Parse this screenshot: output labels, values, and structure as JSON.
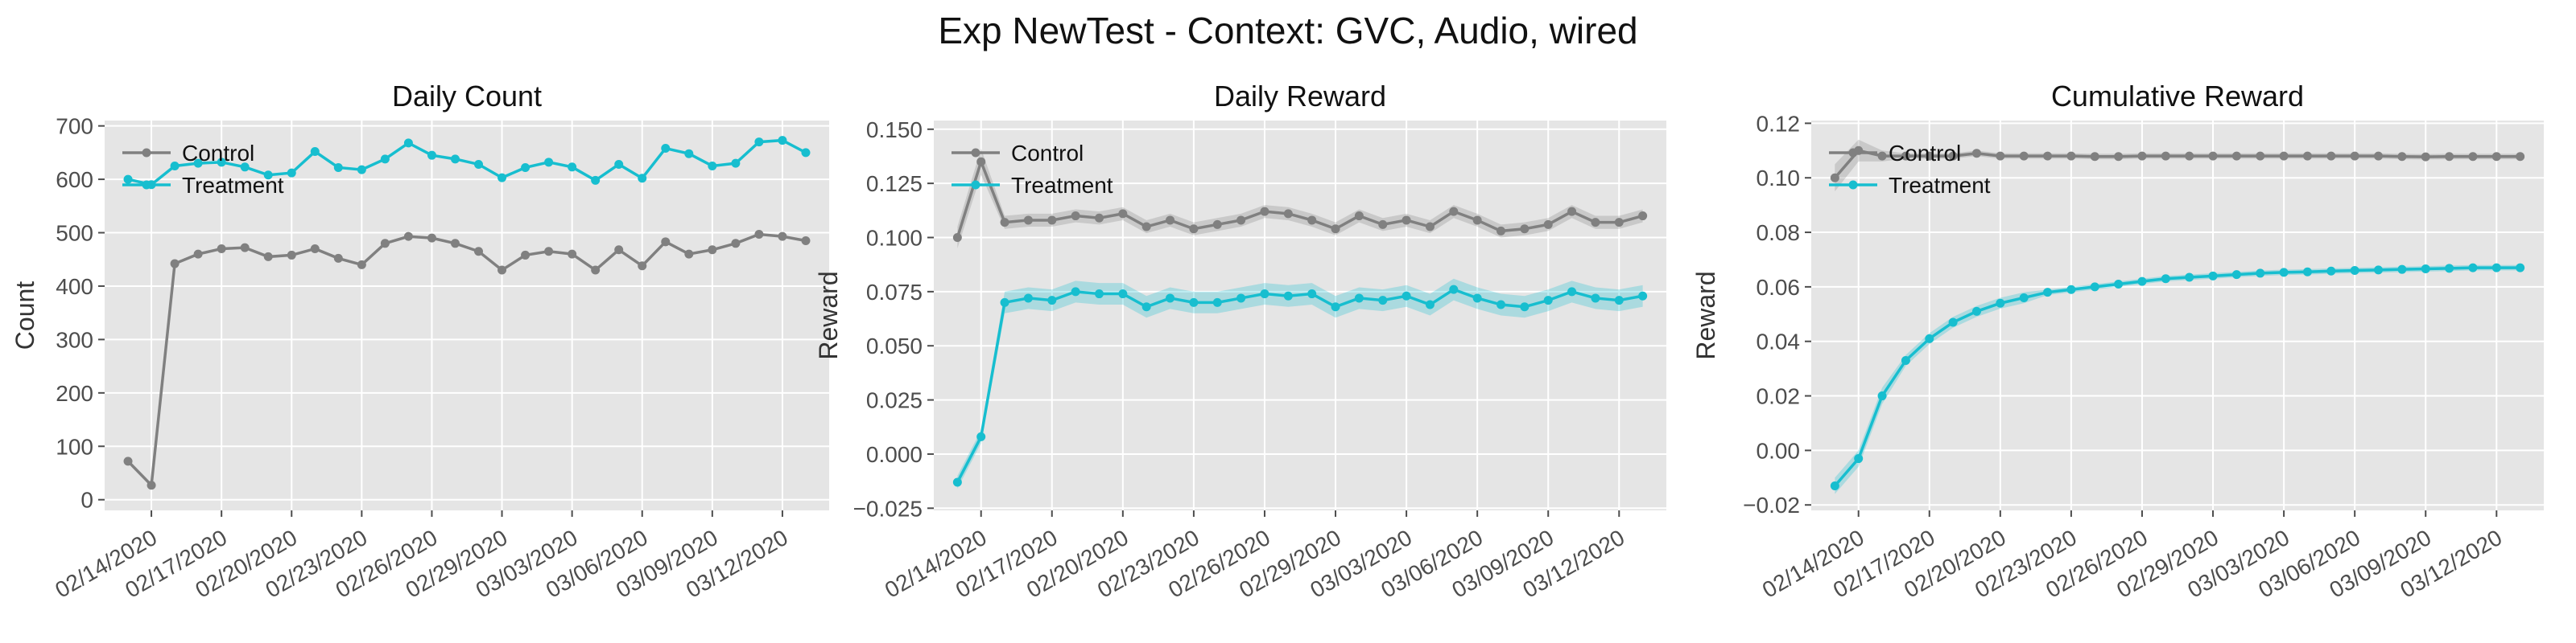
{
  "figure": {
    "title": "Exp NewTest - Context: GVC, Audio, wired"
  },
  "colors": {
    "panel_bg": "#E5E5E5",
    "grid": "#FFFFFF",
    "control": "#808080",
    "treatment": "#17BECF"
  },
  "chart_data": [
    {
      "type": "line",
      "title": "Daily Count",
      "xlabel": "",
      "ylabel": "Count",
      "x_tick_labels": [
        "02/14/2020",
        "02/17/2020",
        "02/20/2020",
        "02/23/2020",
        "02/26/2020",
        "02/29/2020",
        "03/03/2020",
        "03/06/2020",
        "03/09/2020",
        "03/12/2020"
      ],
      "x_tick_dates": [
        "2020-02-14",
        "2020-02-17",
        "2020-02-20",
        "2020-02-23",
        "2020-02-26",
        "2020-02-29",
        "2020-03-03",
        "2020-03-06",
        "2020-03-09",
        "2020-03-12"
      ],
      "x": [
        "2020-02-13",
        "2020-02-14",
        "2020-02-15",
        "2020-02-16",
        "2020-02-17",
        "2020-02-18",
        "2020-02-19",
        "2020-02-20",
        "2020-02-21",
        "2020-02-22",
        "2020-02-23",
        "2020-02-24",
        "2020-02-25",
        "2020-02-26",
        "2020-02-27",
        "2020-02-28",
        "2020-02-29",
        "2020-03-01",
        "2020-03-02",
        "2020-03-03",
        "2020-03-04",
        "2020-03-05",
        "2020-03-06",
        "2020-03-07",
        "2020-03-08",
        "2020-03-09",
        "2020-03-10",
        "2020-03-11",
        "2020-03-12",
        "2020-03-13"
      ],
      "xlim": [
        "2020-02-12",
        "2020-03-14"
      ],
      "ylim": [
        -20,
        710
      ],
      "y_ticks": [
        0,
        100,
        200,
        300,
        400,
        500,
        600,
        700
      ],
      "y_tick_labels": [
        "0",
        "100",
        "200",
        "300",
        "400",
        "500",
        "600",
        "700"
      ],
      "grid": true,
      "legend": {
        "position": "top-left",
        "entries": [
          "Control",
          "Treatment"
        ]
      },
      "series": [
        {
          "name": "Control",
          "values": [
            72,
            27,
            442,
            460,
            470,
            472,
            455,
            458,
            470,
            452,
            440,
            480,
            493,
            490,
            480,
            465,
            430,
            458,
            465,
            460,
            430,
            468,
            438,
            483,
            460,
            468,
            480,
            497,
            493,
            485
          ]
        },
        {
          "name": "Treatment",
          "values": [
            600,
            590,
            625,
            630,
            632,
            623,
            608,
            612,
            652,
            622,
            618,
            638,
            668,
            645,
            638,
            628,
            603,
            622,
            632,
            623,
            598,
            628,
            602,
            658,
            648,
            625,
            630,
            670,
            673,
            650
          ]
        }
      ]
    },
    {
      "type": "line",
      "title": "Daily Reward",
      "xlabel": "",
      "ylabel": "Reward",
      "x_tick_labels": [
        "02/14/2020",
        "02/17/2020",
        "02/20/2020",
        "02/23/2020",
        "02/26/2020",
        "02/29/2020",
        "03/03/2020",
        "03/06/2020",
        "03/09/2020",
        "03/12/2020"
      ],
      "x_tick_dates": [
        "2020-02-14",
        "2020-02-17",
        "2020-02-20",
        "2020-02-23",
        "2020-02-26",
        "2020-02-29",
        "2020-03-03",
        "2020-03-06",
        "2020-03-09",
        "2020-03-12"
      ],
      "x": [
        "2020-02-13",
        "2020-02-14",
        "2020-02-15",
        "2020-02-16",
        "2020-02-17",
        "2020-02-18",
        "2020-02-19",
        "2020-02-20",
        "2020-02-21",
        "2020-02-22",
        "2020-02-23",
        "2020-02-24",
        "2020-02-25",
        "2020-02-26",
        "2020-02-27",
        "2020-02-28",
        "2020-02-29",
        "2020-03-01",
        "2020-03-02",
        "2020-03-03",
        "2020-03-04",
        "2020-03-05",
        "2020-03-06",
        "2020-03-07",
        "2020-03-08",
        "2020-03-09",
        "2020-03-10",
        "2020-03-11",
        "2020-03-12",
        "2020-03-13"
      ],
      "xlim": [
        "2020-02-12",
        "2020-03-14"
      ],
      "ylim": [
        -0.026,
        0.154
      ],
      "y_ticks": [
        -0.025,
        0.0,
        0.025,
        0.05,
        0.075,
        0.1,
        0.125,
        0.15
      ],
      "y_tick_labels": [
        "−0.025",
        "0.000",
        "0.025",
        "0.050",
        "0.075",
        "0.100",
        "0.125",
        "0.150"
      ],
      "grid": true,
      "legend": {
        "position": "top-left",
        "entries": [
          "Control",
          "Treatment"
        ]
      },
      "series": [
        {
          "name": "Control",
          "values": [
            0.1,
            0.135,
            0.107,
            0.108,
            0.108,
            0.11,
            0.109,
            0.111,
            0.105,
            0.108,
            0.104,
            0.106,
            0.108,
            0.112,
            0.111,
            0.108,
            0.104,
            0.11,
            0.106,
            0.108,
            0.105,
            0.112,
            0.108,
            0.103,
            0.104,
            0.106,
            0.112,
            0.107,
            0.107,
            0.11
          ],
          "band": [
            0.005,
            0.006,
            0.003,
            0.003,
            0.003,
            0.003,
            0.003,
            0.003,
            0.003,
            0.003,
            0.003,
            0.003,
            0.003,
            0.003,
            0.003,
            0.003,
            0.003,
            0.003,
            0.003,
            0.003,
            0.003,
            0.003,
            0.003,
            0.003,
            0.003,
            0.003,
            0.003,
            0.003,
            0.003,
            0.003
          ]
        },
        {
          "name": "Treatment",
          "values": [
            -0.013,
            0.008,
            0.07,
            0.072,
            0.071,
            0.075,
            0.074,
            0.074,
            0.068,
            0.072,
            0.07,
            0.07,
            0.072,
            0.074,
            0.073,
            0.074,
            0.068,
            0.072,
            0.071,
            0.073,
            0.069,
            0.076,
            0.072,
            0.069,
            0.068,
            0.071,
            0.075,
            0.072,
            0.071,
            0.073
          ],
          "band": [
            0.003,
            0.003,
            0.005,
            0.005,
            0.005,
            0.005,
            0.005,
            0.005,
            0.005,
            0.005,
            0.005,
            0.005,
            0.005,
            0.005,
            0.005,
            0.005,
            0.005,
            0.005,
            0.005,
            0.005,
            0.005,
            0.005,
            0.005,
            0.005,
            0.005,
            0.005,
            0.005,
            0.005,
            0.005,
            0.005
          ]
        }
      ]
    },
    {
      "type": "line",
      "title": "Cumulative Reward",
      "xlabel": "",
      "ylabel": "Reward",
      "x_tick_labels": [
        "02/14/2020",
        "02/17/2020",
        "02/20/2020",
        "02/23/2020",
        "02/26/2020",
        "02/29/2020",
        "03/03/2020",
        "03/06/2020",
        "03/09/2020",
        "03/12/2020"
      ],
      "x_tick_dates": [
        "2020-02-14",
        "2020-02-17",
        "2020-02-20",
        "2020-02-23",
        "2020-02-26",
        "2020-02-29",
        "2020-03-03",
        "2020-03-06",
        "2020-03-09",
        "2020-03-12"
      ],
      "x": [
        "2020-02-13",
        "2020-02-14",
        "2020-02-15",
        "2020-02-16",
        "2020-02-17",
        "2020-02-18",
        "2020-02-19",
        "2020-02-20",
        "2020-02-21",
        "2020-02-22",
        "2020-02-23",
        "2020-02-24",
        "2020-02-25",
        "2020-02-26",
        "2020-02-27",
        "2020-02-28",
        "2020-02-29",
        "2020-03-01",
        "2020-03-02",
        "2020-03-03",
        "2020-03-04",
        "2020-03-05",
        "2020-03-06",
        "2020-03-07",
        "2020-03-08",
        "2020-03-09",
        "2020-03-10",
        "2020-03-11",
        "2020-03-12",
        "2020-03-13"
      ],
      "xlim": [
        "2020-02-12",
        "2020-03-14"
      ],
      "ylim": [
        -0.022,
        0.121
      ],
      "y_ticks": [
        -0.02,
        0.0,
        0.02,
        0.04,
        0.06,
        0.08,
        0.1,
        0.12
      ],
      "y_tick_labels": [
        "−0.02",
        "0.00",
        "0.02",
        "0.04",
        "0.06",
        "0.08",
        "0.10",
        "0.12"
      ],
      "grid": true,
      "legend": {
        "position": "top-left",
        "entries": [
          "Control",
          "Treatment"
        ]
      },
      "series": [
        {
          "name": "Control",
          "values": [
            0.1,
            0.11,
            0.108,
            0.108,
            0.108,
            0.108,
            0.109,
            0.108,
            0.108,
            0.108,
            0.108,
            0.1078,
            0.1078,
            0.108,
            0.108,
            0.108,
            0.108,
            0.108,
            0.108,
            0.108,
            0.108,
            0.108,
            0.108,
            0.108,
            0.1078,
            0.1077,
            0.1078,
            0.1078,
            0.1078,
            0.1078
          ],
          "band": [
            0.005,
            0.004,
            0.002,
            0.001,
            0.001,
            0.001,
            0.001,
            0.001,
            0.001,
            0.001,
            0.001,
            0.001,
            0.001,
            0.001,
            0.001,
            0.001,
            0.001,
            0.001,
            0.001,
            0.001,
            0.001,
            0.001,
            0.001,
            0.001,
            0.001,
            0.001,
            0.001,
            0.001,
            0.001,
            0.001
          ]
        },
        {
          "name": "Treatment",
          "values": [
            -0.013,
            -0.003,
            0.02,
            0.033,
            0.041,
            0.047,
            0.051,
            0.054,
            0.056,
            0.058,
            0.059,
            0.06,
            0.061,
            0.062,
            0.063,
            0.0635,
            0.064,
            0.0645,
            0.065,
            0.0653,
            0.0655,
            0.0658,
            0.066,
            0.0662,
            0.0664,
            0.0666,
            0.0668,
            0.067,
            0.067,
            0.067
          ],
          "band": [
            0.003,
            0.003,
            0.003,
            0.002,
            0.002,
            0.002,
            0.002,
            0.002,
            0.002,
            0.001,
            0.001,
            0.001,
            0.001,
            0.001,
            0.001,
            0.001,
            0.001,
            0.001,
            0.001,
            0.001,
            0.001,
            0.001,
            0.001,
            0.001,
            0.001,
            0.001,
            0.001,
            0.001,
            0.001,
            0.001
          ]
        }
      ]
    }
  ]
}
